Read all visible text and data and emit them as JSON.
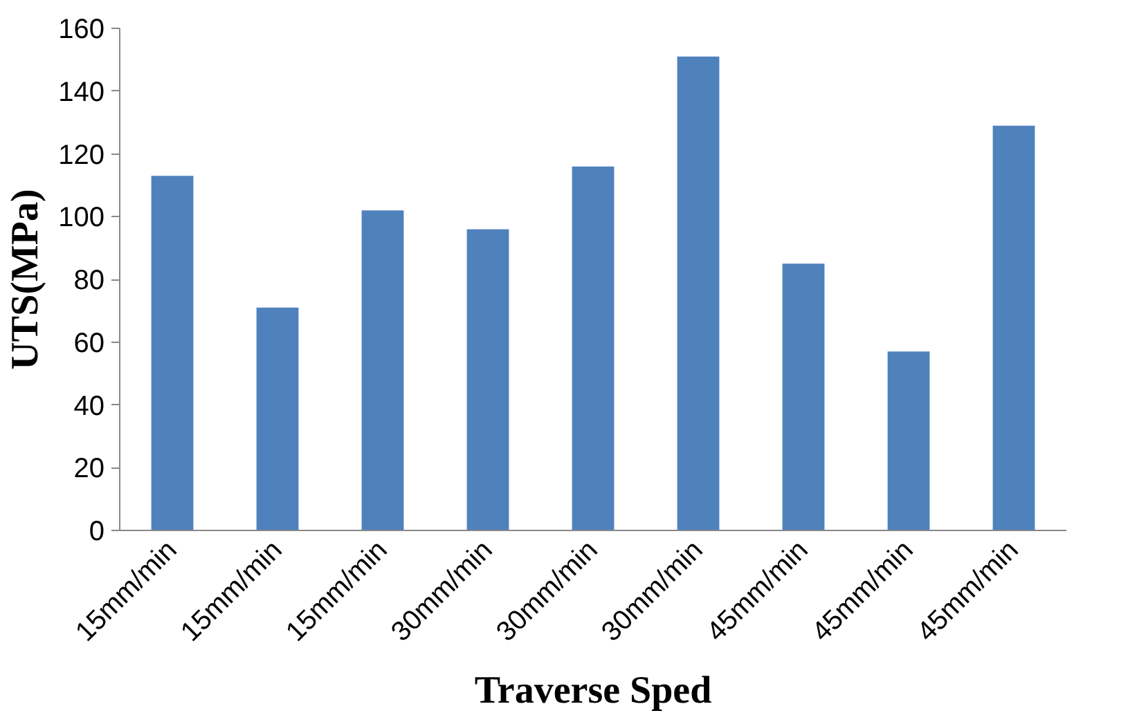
{
  "chart_data": {
    "type": "bar",
    "xlabel": "Traverse Sped",
    "ylabel": "UTS(MPa)",
    "categories": [
      "15mm/min",
      "15mm/min",
      "15mm/min",
      "30mm/min",
      "30mm/min",
      "30mm/min",
      "45mm/min",
      "45mm/min",
      "45mm/min"
    ],
    "values": [
      113,
      71,
      102,
      96,
      116,
      151,
      85,
      57,
      129
    ],
    "color": "#4f81bd",
    "ylim": [
      0,
      160
    ],
    "yticks": [
      0,
      20,
      40,
      60,
      80,
      100,
      120,
      140,
      160
    ],
    "grid": false
  }
}
